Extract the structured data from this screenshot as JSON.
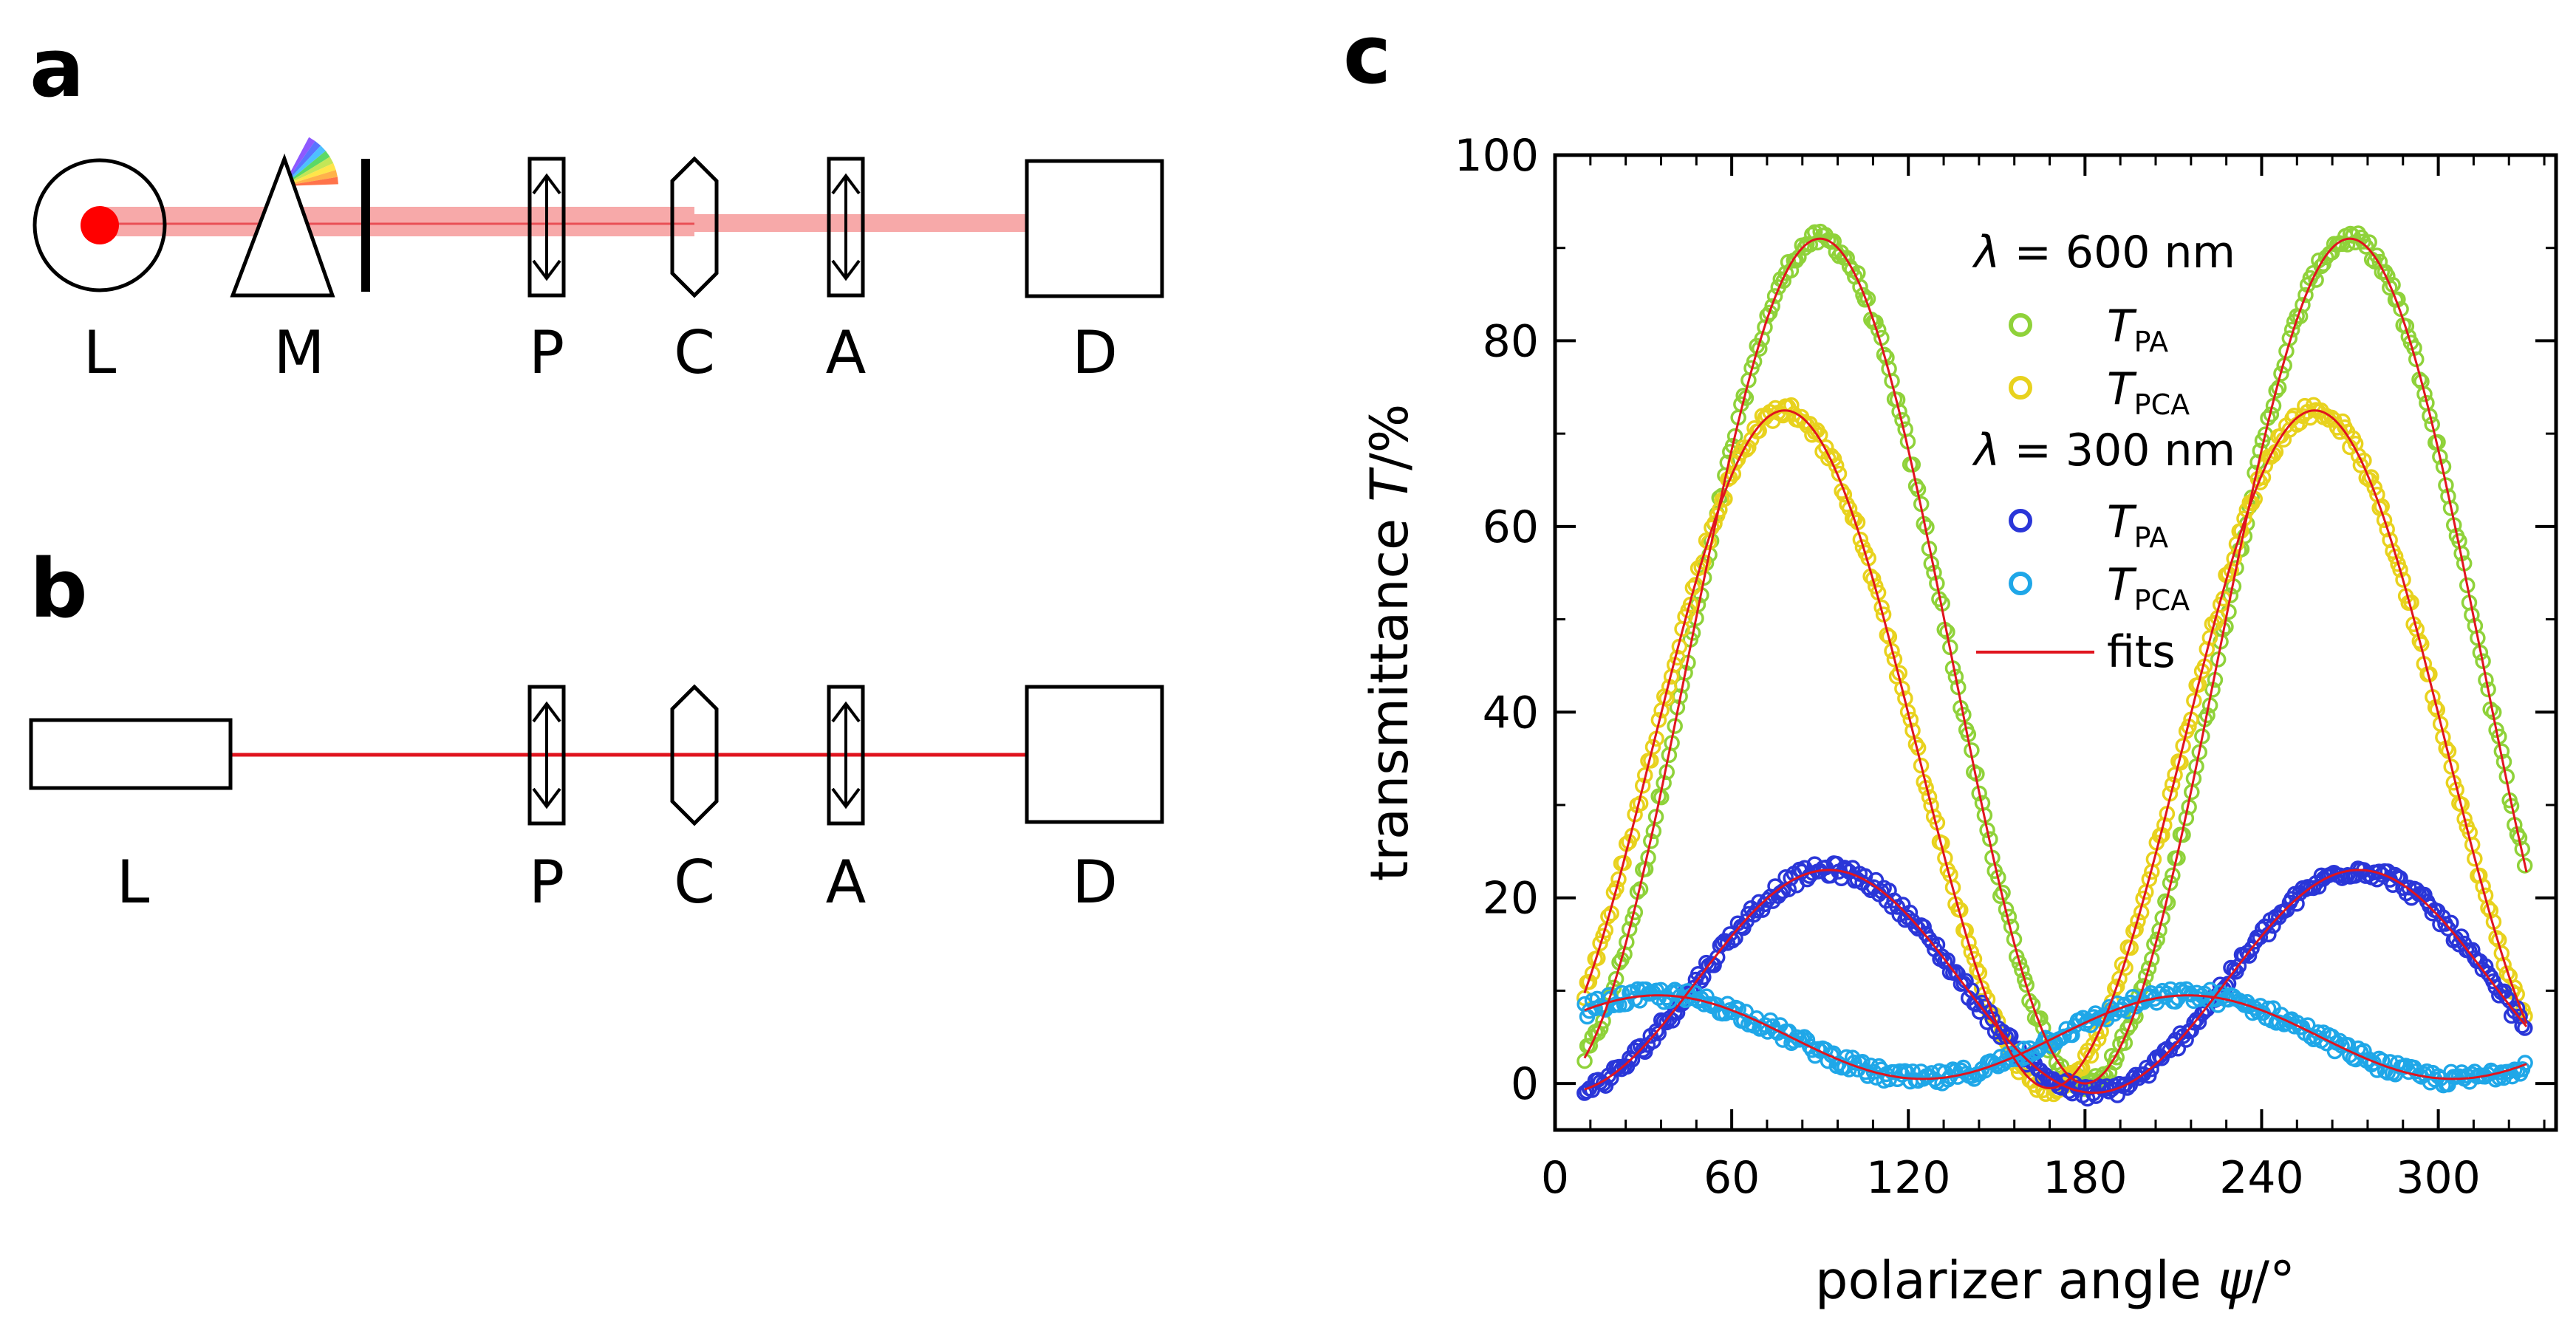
{
  "panels": {
    "a": {
      "letter": "a",
      "labels": {
        "L": "L",
        "M": "M",
        "P": "P",
        "C": "C",
        "A": "A",
        "D": "D"
      }
    },
    "b": {
      "letter": "b",
      "labels": {
        "L": "L",
        "P": "P",
        "C": "C",
        "A": "A",
        "D": "D"
      }
    },
    "c": {
      "letter": "c"
    }
  },
  "colors": {
    "beam_wide": "#f7a9a9",
    "beam_line": "#e0141e",
    "source_dot": "#ff0000",
    "green": "#8fd23a",
    "yellow": "#e8d21e",
    "blue": "#2a36d8",
    "cyan": "#1fa7e8",
    "fit": "#e0141e",
    "spectrum": [
      "#7a3cff",
      "#3c5cff",
      "#2fb5ff",
      "#3fd24a",
      "#b8e23a",
      "#ffe02a",
      "#ffa42a",
      "#ff5a2a"
    ]
  },
  "chart_data": {
    "type": "scatter",
    "title": "",
    "xlabel_prefix": "polarizer angle ",
    "xlabel_symbol": "ψ",
    "xlabel_suffix": "/°",
    "ylabel_prefix": "transmittance ",
    "ylabel_symbol": "T",
    "ylabel_suffix": "/%",
    "xlim": [
      0,
      340
    ],
    "ylim": [
      -5,
      100
    ],
    "xticks": [
      0,
      60,
      120,
      180,
      240,
      300
    ],
    "yticks": [
      0,
      20,
      40,
      60,
      80,
      100
    ],
    "xtick_labels": [
      "0",
      "60",
      "120",
      "180",
      "240",
      "300"
    ],
    "ytick_labels": [
      "0",
      "20",
      "40",
      "60",
      "80",
      "100"
    ],
    "x_range": [
      10,
      330
    ],
    "legend": {
      "position": "top-right",
      "group1_label_prefix": "λ",
      "group1_label_rest": " = 600 nm",
      "group2_label_prefix": "λ",
      "group2_label_rest": " = 300 nm",
      "tpa_main": "T",
      "tpa_sub": "PA",
      "tpca_main": "T",
      "tpca_sub": "PCA",
      "fits_label": "fits"
    },
    "series": [
      {
        "name": "T_PA (λ = 600 nm)",
        "color_key": "green",
        "mean": 45.5,
        "amplitude": 45.5,
        "peak_deg": 90,
        "period_deg": 180
      },
      {
        "name": "T_PCA (λ = 600 nm)",
        "color_key": "yellow",
        "mean": 36,
        "amplitude": 36.5,
        "peak_deg": 78,
        "period_deg": 180
      },
      {
        "name": "T_PA (λ = 300 nm)",
        "color_key": "blue",
        "mean": 11,
        "amplitude": 12,
        "peak_deg": 93,
        "period_deg": 180
      },
      {
        "name": "T_PCA (λ = 300 nm)",
        "color_key": "cyan",
        "mean": 5,
        "amplitude": 4.5,
        "peak_deg": 35,
        "period_deg": 180
      }
    ]
  }
}
